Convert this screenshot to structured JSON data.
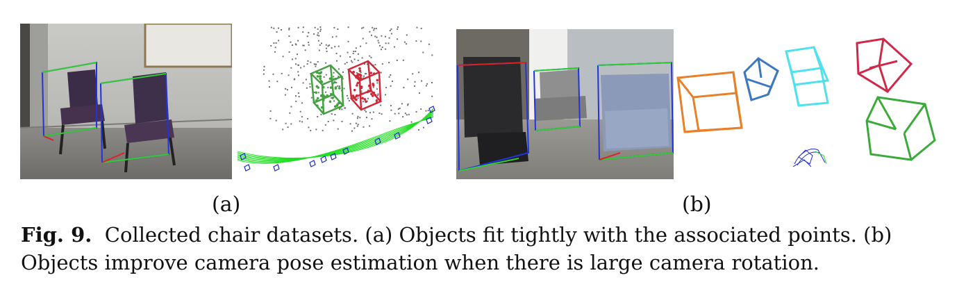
{
  "figure": {
    "number": "Fig. 9.",
    "caption_lines": [
      "Collected chair datasets. (a) Objects fit tightly with the associated points. (b)",
      "Objects improve camera pose estimation when there is large camera rotation."
    ],
    "panels": [
      {
        "label": "(a)"
      },
      {
        "label": "(b)"
      }
    ]
  },
  "colors": {
    "box_blue": "#2233dd",
    "box_green": "#33cc33",
    "box_red": "#dd2222",
    "obj_green": "#44a040",
    "obj_red": "#d02838",
    "obj_orange": "#e8802a",
    "obj_blue": "#3a78c0",
    "obj_cyan": "#50e0ee",
    "obj_crimson": "#d02848",
    "obj_green2": "#3aaa3a",
    "traj_green": "#22dd22",
    "cam_blue": "#1a2ad0",
    "points": "#6f6f6f"
  }
}
